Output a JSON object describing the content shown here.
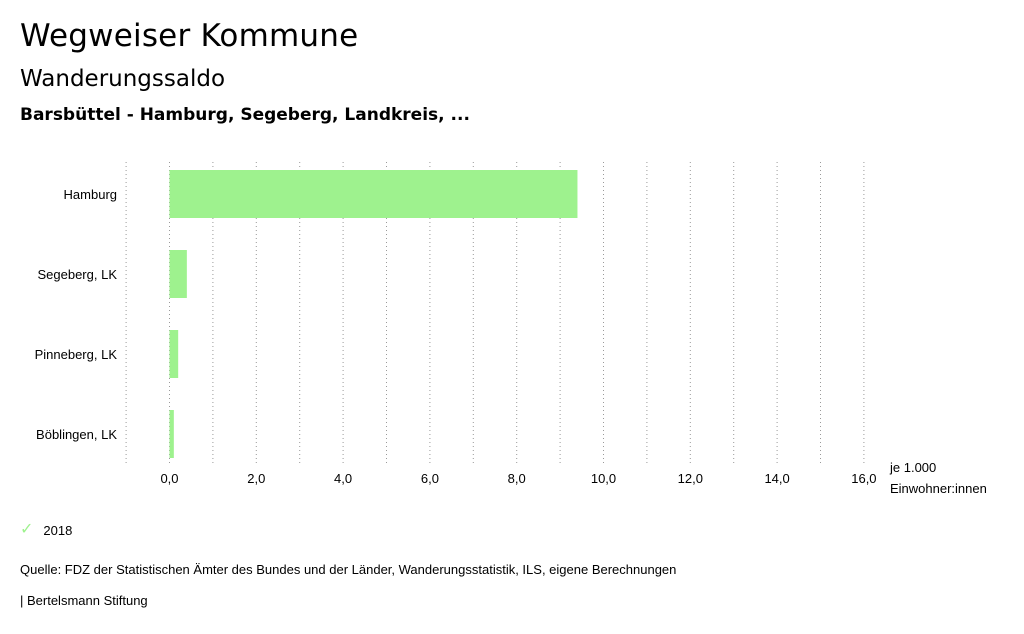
{
  "header": {
    "title": "Wegweiser Kommune",
    "subtitle": "Wanderungssaldo",
    "region": "Barsbüttel - Hamburg, Segeberg, Landkreis, ..."
  },
  "chart_data": {
    "type": "bar",
    "orientation": "horizontal",
    "categories": [
      "Hamburg",
      "Segeberg, LK",
      "Pinneberg, LK",
      "Böblingen, LK"
    ],
    "series": [
      {
        "name": "2018",
        "values": [
          9.4,
          0.4,
          0.2,
          0.1
        ],
        "color": "#9ef28e"
      }
    ],
    "xticks": [
      "0,0",
      "2,0",
      "4,0",
      "6,0",
      "8,0",
      "10,0",
      "12,0",
      "14,0",
      "16,0"
    ],
    "xlim": [
      -1,
      16
    ],
    "unit_line1": "je 1.000",
    "unit_line2": "Einwohner:innen",
    "grid": "vertical dotted"
  },
  "legend": {
    "label": "2018",
    "icon": "check-icon"
  },
  "footer": {
    "source": "Quelle: FDZ der Statistischen Ämter des Bundes und der Länder, Wanderungsstatistik, ILS, eigene Berechnungen",
    "brand": "| Bertelsmann Stiftung"
  }
}
